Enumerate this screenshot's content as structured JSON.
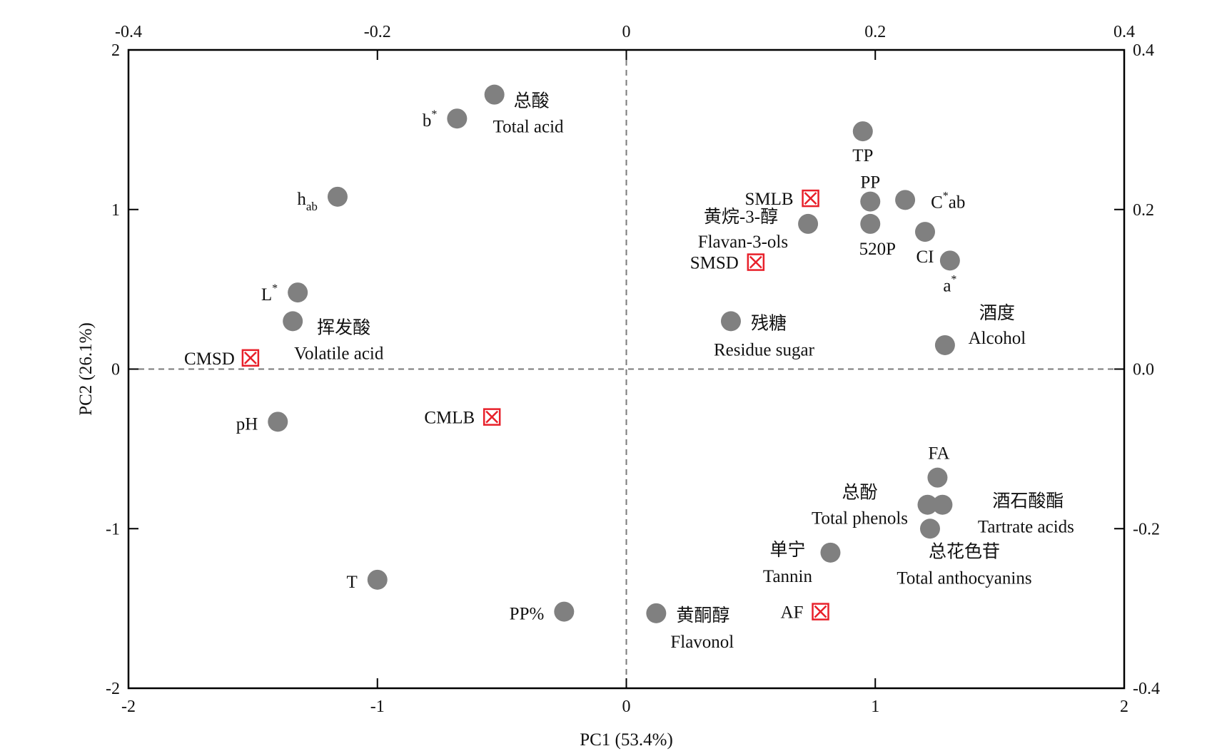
{
  "chart_data": {
    "type": "scatter",
    "subtype": "pca-biplot",
    "xlabel": "PC1 (53.4%)",
    "ylabel": "PC2 (26.1%)",
    "xlim": [
      -2,
      2
    ],
    "ylim": [
      -2,
      2
    ],
    "x_ticks": [
      "-2",
      "-1",
      "0",
      "1",
      "2"
    ],
    "y_ticks": [
      "-2",
      "-1",
      "0",
      "1",
      "2"
    ],
    "top_xlim": [
      -0.4,
      0.4
    ],
    "top_ticks": [
      "-0.4",
      "-0.2",
      "0",
      "0.2",
      "0.4"
    ],
    "right_ylim": [
      -0.4,
      0.4
    ],
    "right_ticks": [
      "-0.4",
      "-0.2",
      "0.0",
      "0.2",
      "0.4"
    ],
    "colors": {
      "variable": "#808080",
      "sample": "#e8202a",
      "axis": "#000000",
      "zero_line": "#7a7a7a"
    },
    "variables": [
      {
        "name": "total-acid",
        "x": -0.53,
        "y": 1.72,
        "label": "总酸",
        "label2": "Total acid"
      },
      {
        "name": "b-star",
        "x": -0.68,
        "y": 1.57,
        "label": "b",
        "sup": "*"
      },
      {
        "name": "tp",
        "x": 0.95,
        "y": 1.49,
        "label": "TP"
      },
      {
        "name": "h-ab",
        "x": -1.16,
        "y": 1.08,
        "label": "h",
        "sub": "ab"
      },
      {
        "name": "pp",
        "x": 0.98,
        "y": 1.05,
        "label": "PP"
      },
      {
        "name": "c-ab",
        "x": 1.12,
        "y": 1.06,
        "label": "C",
        "sup": "*",
        "suffix": "ab"
      },
      {
        "name": "flavan-3-ols",
        "x": 0.73,
        "y": 0.91,
        "label": "黄烷-3-醇",
        "label2": "Flavan-3-ols"
      },
      {
        "name": "520p",
        "x": 0.98,
        "y": 0.91,
        "label": "520P"
      },
      {
        "name": "ci",
        "x": 1.2,
        "y": 0.86,
        "label": "CI"
      },
      {
        "name": "a-star",
        "x": 1.3,
        "y": 0.68,
        "label": "a",
        "sup": "*"
      },
      {
        "name": "l-star",
        "x": -1.32,
        "y": 0.48,
        "label": "L",
        "sup": "*"
      },
      {
        "name": "volatile-acid",
        "x": -1.34,
        "y": 0.3,
        "label": "挥发酸",
        "label2": "Volatile acid"
      },
      {
        "name": "residue-sugar",
        "x": 0.42,
        "y": 0.3,
        "label": "残糖",
        "label2": "Residue sugar"
      },
      {
        "name": "alcohol",
        "x": 1.28,
        "y": 0.15,
        "label": "酒度",
        "label2": "Alcohol"
      },
      {
        "name": "ph",
        "x": -1.4,
        "y": -0.33,
        "label": "pH"
      },
      {
        "name": "fa",
        "x": 1.25,
        "y": -0.68,
        "label": "FA"
      },
      {
        "name": "total-phenols",
        "x": 1.21,
        "y": -0.85,
        "label": "总酚",
        "label2": "Total phenols"
      },
      {
        "name": "tartrate-acids",
        "x": 1.27,
        "y": -0.85,
        "label": "酒石酸酯",
        "label2": "Tartrate acids"
      },
      {
        "name": "total-anthocyanins",
        "x": 1.22,
        "y": -1.0,
        "label": "总花色苷",
        "label2": "Total anthocyanins"
      },
      {
        "name": "tannin",
        "x": 0.82,
        "y": -1.15,
        "label": "单宁",
        "label2": "Tannin"
      },
      {
        "name": "t",
        "x": -1.0,
        "y": -1.32,
        "label": "T"
      },
      {
        "name": "pp-percent",
        "x": -0.25,
        "y": -1.52,
        "label": "PP%"
      },
      {
        "name": "flavonol",
        "x": 0.12,
        "y": -1.53,
        "label": "黄酮醇",
        "label2": "Flavonol"
      }
    ],
    "samples": [
      {
        "name": "smlb",
        "x": 0.74,
        "y": 1.07,
        "label": "SMLB"
      },
      {
        "name": "smsd",
        "x": 0.52,
        "y": 0.67,
        "label": "SMSD"
      },
      {
        "name": "cmsd",
        "x": -1.51,
        "y": 0.07,
        "label": "CMSD"
      },
      {
        "name": "cmlb",
        "x": -0.54,
        "y": -0.3,
        "label": "CMLB"
      },
      {
        "name": "af",
        "x": 0.78,
        "y": -1.52,
        "label": "AF"
      }
    ]
  }
}
